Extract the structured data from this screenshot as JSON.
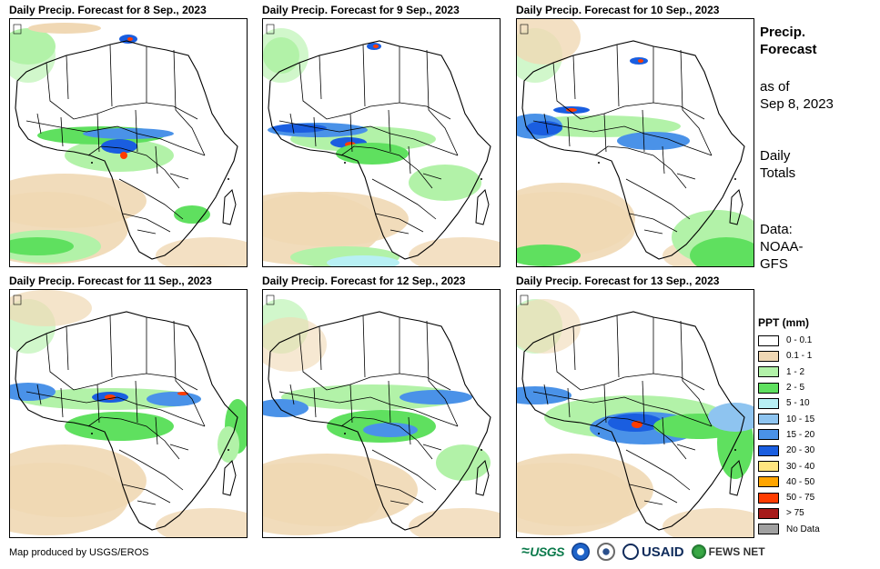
{
  "panels": [
    {
      "title": "Daily Precip. Forecast for 8 Sep., 2023"
    },
    {
      "title": "Daily Precip. Forecast for 9 Sep., 2023"
    },
    {
      "title": "Daily Precip. Forecast for 10 Sep., 2023"
    },
    {
      "title": "Daily Precip. Forecast for 11 Sep., 2023"
    },
    {
      "title": "Daily Precip. Forecast for 12 Sep., 2023"
    },
    {
      "title": "Daily Precip. Forecast for 13 Sep., 2023"
    }
  ],
  "sidebar": {
    "title_line1": "Precip.",
    "title_line2": "Forecast",
    "asof_line1": "as of",
    "asof_line2": "Sep 8, 2023",
    "daily_line1": "Daily",
    "daily_line2": "Totals",
    "data_line1": "Data:",
    "data_line2": "NOAA-",
    "data_line3": "GFS"
  },
  "legend": {
    "title": "PPT (mm)",
    "items": [
      {
        "label": "0 - 0.1",
        "color": "#ffffff"
      },
      {
        "label": "0.1 - 1",
        "color": "#f0d8b4"
      },
      {
        "label": "1 - 2",
        "color": "#b2f2a8"
      },
      {
        "label": "2 - 5",
        "color": "#5fe05f"
      },
      {
        "label": "5 - 10",
        "color": "#b8f0f4"
      },
      {
        "label": "10 - 15",
        "color": "#8ec4f0"
      },
      {
        "label": "15 - 20",
        "color": "#4a92e8"
      },
      {
        "label": "20 - 30",
        "color": "#1a5ee0"
      },
      {
        "label": "30 - 40",
        "color": "#ffe680"
      },
      {
        "label": "40 - 50",
        "color": "#ffa500"
      },
      {
        "label": "50 - 75",
        "color": "#ff3c00"
      },
      {
        "label": "> 75",
        "color": "#a61a1a"
      },
      {
        "label": "No Data",
        "color": "#a0a0a0"
      }
    ]
  },
  "footer": {
    "credit": "Map produced by USGS/EROS",
    "logos": {
      "usgs": "USGS",
      "usaid": "USAID",
      "fews": "FEWS NET"
    },
    "logo_icons": [
      "noaa-seal-icon",
      "state-seal-icon",
      "fews-globe-icon"
    ]
  }
}
